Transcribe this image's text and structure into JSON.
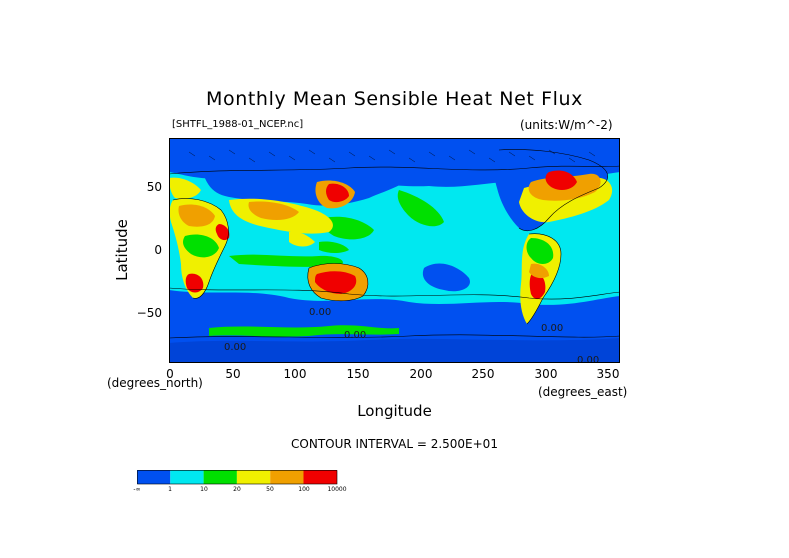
{
  "title": "Monthly Mean Sensible Heat Net Flux",
  "file_label": "[SHTFL_1988-01_NCEP.nc]",
  "units_label": "(units:W/m^-2)",
  "axes": {
    "ylabel": "Latitude",
    "xlabel": "Longitude",
    "y_unit_label": "(degrees_north)",
    "x_unit_label": "(degrees_east)",
    "x_ticks": [
      "0",
      "50",
      "100",
      "150",
      "200",
      "250",
      "300",
      "350"
    ],
    "y_ticks": [
      "50",
      "0",
      "−50"
    ],
    "xlim": [
      0,
      360
    ],
    "ylim": [
      -90,
      90
    ]
  },
  "contour_interval": "CONTOUR INTERVAL = 2.500E+01",
  "contour_labels": [
    "0.00",
    "0.00",
    "0.00",
    "0.00",
    "0.00"
  ],
  "colorbar": {
    "colors": [
      "#0050f0",
      "#00e8f0",
      "#00e000",
      "#f0f000",
      "#f0a000",
      "#f00000"
    ],
    "labels": [
      "-∞",
      "1",
      "10",
      "20",
      "50",
      "100",
      "10000"
    ]
  },
  "colors": {
    "deep_blue": "#0050f0",
    "cyan": "#00e8f0",
    "green": "#00e000",
    "yellow": "#f0f000",
    "orange": "#f0a000",
    "red": "#f00000"
  }
}
